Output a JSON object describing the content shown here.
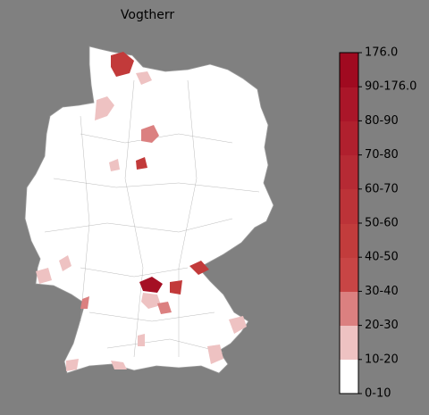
{
  "title": "Vogtherr",
  "colorbar": {
    "labels": [
      "0-10",
      "10-20",
      "20-30",
      "30-40",
      "40-50",
      "50-60",
      "60-70",
      "70-80",
      "80-90",
      "90-176.0",
      "176.0"
    ]
  }
}
